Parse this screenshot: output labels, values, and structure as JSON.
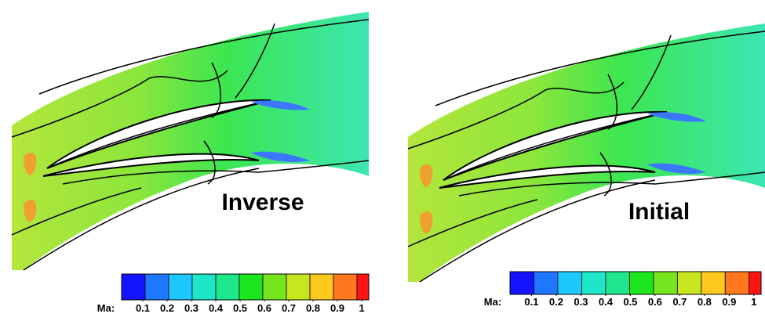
{
  "panels": [
    {
      "label": "Inverse",
      "colorbar": {
        "title": "Ma:",
        "ticks": [
          0.1,
          0.2,
          0.3,
          0.4,
          0.5,
          0.6,
          0.7,
          0.8,
          0.9,
          1
        ],
        "colors": [
          "#1414ff",
          "#1e78ff",
          "#1ec8ff",
          "#1ee6c8",
          "#1ee68c",
          "#1ee61e",
          "#78e61e",
          "#c8e61e",
          "#ffc81e",
          "#ff781e",
          "#ff1414"
        ]
      }
    },
    {
      "label": "Initial",
      "colorbar": {
        "title": "Ma:",
        "ticks": [
          0.1,
          0.2,
          0.3,
          0.4,
          0.5,
          0.6,
          0.7,
          0.8,
          0.9,
          1
        ],
        "colors": [
          "#1414ff",
          "#1e78ff",
          "#1ec8ff",
          "#1ee6c8",
          "#1ee68c",
          "#1ee61e",
          "#78e61e",
          "#c8e61e",
          "#ffc81e",
          "#ff781e",
          "#ff1414"
        ]
      }
    }
  ]
}
